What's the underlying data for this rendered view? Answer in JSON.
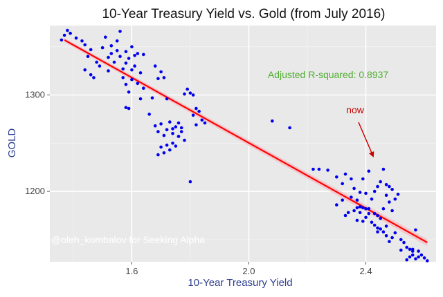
{
  "chart_data": {
    "type": "scatter",
    "title": "10-Year Treasury Yield vs. Gold (from July 2016)",
    "xlabel": "10-Year Treasury Yield",
    "ylabel": "GOLD",
    "xlim": [
      1.32,
      2.64
    ],
    "ylim": [
      1127,
      1372
    ],
    "xticks": [
      1.6,
      2.0,
      2.4
    ],
    "xtick_labels": [
      "1.6",
      "2.0",
      "2.4"
    ],
    "yticks": [
      1200,
      1300
    ],
    "ytick_labels": [
      "1200",
      "1300"
    ],
    "grid": true,
    "point_color": "#0000ee",
    "line_color": "#ff0000",
    "band_color": "#f7b7bd",
    "annotation_color": "#cc0000",
    "r2_color": "#4fae2f",
    "points": [
      [
        1.37,
        1362
      ],
      [
        1.38,
        1367
      ],
      [
        1.39,
        1364
      ],
      [
        1.41,
        1359
      ],
      [
        1.36,
        1357
      ],
      [
        1.43,
        1356
      ],
      [
        1.44,
        1352
      ],
      [
        1.46,
        1347
      ],
      [
        1.45,
        1340
      ],
      [
        1.44,
        1326
      ],
      [
        1.46,
        1321
      ],
      [
        1.47,
        1318
      ],
      [
        1.48,
        1334
      ],
      [
        1.49,
        1330
      ],
      [
        1.5,
        1349
      ],
      [
        1.51,
        1360
      ],
      [
        1.52,
        1339
      ],
      [
        1.52,
        1325
      ],
      [
        1.53,
        1351
      ],
      [
        1.53,
        1343
      ],
      [
        1.54,
        1334
      ],
      [
        1.55,
        1356
      ],
      [
        1.55,
        1346
      ],
      [
        1.56,
        1366
      ],
      [
        1.56,
        1340
      ],
      [
        1.57,
        1327
      ],
      [
        1.57,
        1318
      ],
      [
        1.58,
        1345
      ],
      [
        1.58,
        1333
      ],
      [
        1.58,
        1311
      ],
      [
        1.59,
        1338
      ],
      [
        1.6,
        1350
      ],
      [
        1.6,
        1326
      ],
      [
        1.61,
        1341
      ],
      [
        1.61,
        1330
      ],
      [
        1.62,
        1312
      ],
      [
        1.62,
        1343
      ],
      [
        1.63,
        1323
      ],
      [
        1.63,
        1296
      ],
      [
        1.64,
        1342
      ],
      [
        1.64,
        1307
      ],
      [
        1.59,
        1286
      ],
      [
        1.6,
        1316
      ],
      [
        1.58,
        1287
      ],
      [
        1.59,
        1303
      ],
      [
        1.66,
        1280
      ],
      [
        1.67,
        1297
      ],
      [
        1.68,
        1330
      ],
      [
        1.69,
        1317
      ],
      [
        1.7,
        1324
      ],
      [
        1.71,
        1318
      ],
      [
        1.72,
        1296
      ],
      [
        1.68,
        1268
      ],
      [
        1.69,
        1262
      ],
      [
        1.7,
        1270
      ],
      [
        1.71,
        1258
      ],
      [
        1.72,
        1264
      ],
      [
        1.73,
        1272
      ],
      [
        1.74,
        1260
      ],
      [
        1.75,
        1267
      ],
      [
        1.76,
        1271
      ],
      [
        1.77,
        1262
      ],
      [
        1.74,
        1250
      ],
      [
        1.75,
        1247
      ],
      [
        1.76,
        1257
      ],
      [
        1.77,
        1266
      ],
      [
        1.78,
        1253
      ],
      [
        1.72,
        1248
      ],
      [
        1.71,
        1240
      ],
      [
        1.73,
        1243
      ],
      [
        1.7,
        1246
      ],
      [
        1.69,
        1238
      ],
      [
        1.74,
        1265
      ],
      [
        1.76,
        1257
      ],
      [
        1.79,
        1306
      ],
      [
        1.8,
        1302
      ],
      [
        1.81,
        1300
      ],
      [
        1.82,
        1286
      ],
      [
        1.83,
        1283
      ],
      [
        1.84,
        1274
      ],
      [
        1.85,
        1271
      ],
      [
        1.81,
        1279
      ],
      [
        1.82,
        1269
      ],
      [
        1.8,
        1210
      ],
      [
        1.78,
        1301
      ],
      [
        2.08,
        1273
      ],
      [
        2.14,
        1266
      ],
      [
        2.22,
        1223
      ],
      [
        2.24,
        1223
      ],
      [
        2.27,
        1222
      ],
      [
        2.3,
        1215
      ],
      [
        2.32,
        1208
      ],
      [
        2.33,
        1218
      ],
      [
        2.35,
        1213
      ],
      [
        2.36,
        1203
      ],
      [
        2.38,
        1199
      ],
      [
        2.3,
        1186
      ],
      [
        2.32,
        1191
      ],
      [
        2.35,
        1194
      ],
      [
        2.37,
        1191
      ],
      [
        2.38,
        1184
      ],
      [
        2.4,
        1182
      ],
      [
        2.41,
        1182
      ],
      [
        2.43,
        1177
      ],
      [
        2.44,
        1175
      ],
      [
        2.45,
        1172
      ],
      [
        2.46,
        1182
      ],
      [
        2.47,
        1196
      ],
      [
        2.48,
        1189
      ],
      [
        2.49,
        1180
      ],
      [
        2.5,
        1192
      ],
      [
        2.51,
        1197
      ],
      [
        2.36,
        1180
      ],
      [
        2.37,
        1183
      ],
      [
        2.38,
        1178
      ],
      [
        2.39,
        1183
      ],
      [
        2.4,
        1173
      ],
      [
        2.41,
        1177
      ],
      [
        2.42,
        1168
      ],
      [
        2.43,
        1165
      ],
      [
        2.44,
        1162
      ],
      [
        2.45,
        1161
      ],
      [
        2.46,
        1158
      ],
      [
        2.47,
        1154
      ],
      [
        2.48,
        1148
      ],
      [
        2.49,
        1152
      ],
      [
        2.5,
        1157
      ],
      [
        2.52,
        1150
      ],
      [
        2.53,
        1147
      ],
      [
        2.54,
        1142
      ],
      [
        2.55,
        1140
      ],
      [
        2.56,
        1138
      ],
      [
        2.57,
        1160
      ],
      [
        2.58,
        1138
      ],
      [
        2.59,
        1134
      ],
      [
        2.6,
        1131
      ],
      [
        2.61,
        1128
      ],
      [
        2.55,
        1132
      ],
      [
        2.56,
        1134
      ],
      [
        2.58,
        1132
      ],
      [
        2.46,
        1223
      ],
      [
        2.47,
        1207
      ],
      [
        2.48,
        1205
      ],
      [
        2.49,
        1202
      ],
      [
        2.45,
        1210
      ],
      [
        2.44,
        1205
      ],
      [
        2.4,
        1198
      ],
      [
        2.39,
        1213
      ],
      [
        2.41,
        1221
      ],
      [
        2.43,
        1200
      ],
      [
        2.42,
        1192
      ],
      [
        2.33,
        1175
      ],
      [
        2.34,
        1178
      ],
      [
        2.37,
        1170
      ],
      [
        2.39,
        1169
      ],
      [
        2.44,
        1158
      ],
      [
        2.47,
        1164
      ],
      [
        2.52,
        1139
      ],
      [
        2.54,
        1129
      ],
      [
        2.56,
        1140
      ],
      [
        2.57,
        1130
      ]
    ],
    "fit_line": {
      "x1": 1.37,
      "y1": 1357,
      "x2": 2.61,
      "y2": 1147
    },
    "annotations": {
      "r_squared": "Adjusted R-squared: 0.8937",
      "now_label": "now",
      "now_point": {
        "x": 2.465,
        "y": 1229
      },
      "watermark": "@oleh_kombalov for Seeking Alpha"
    }
  }
}
